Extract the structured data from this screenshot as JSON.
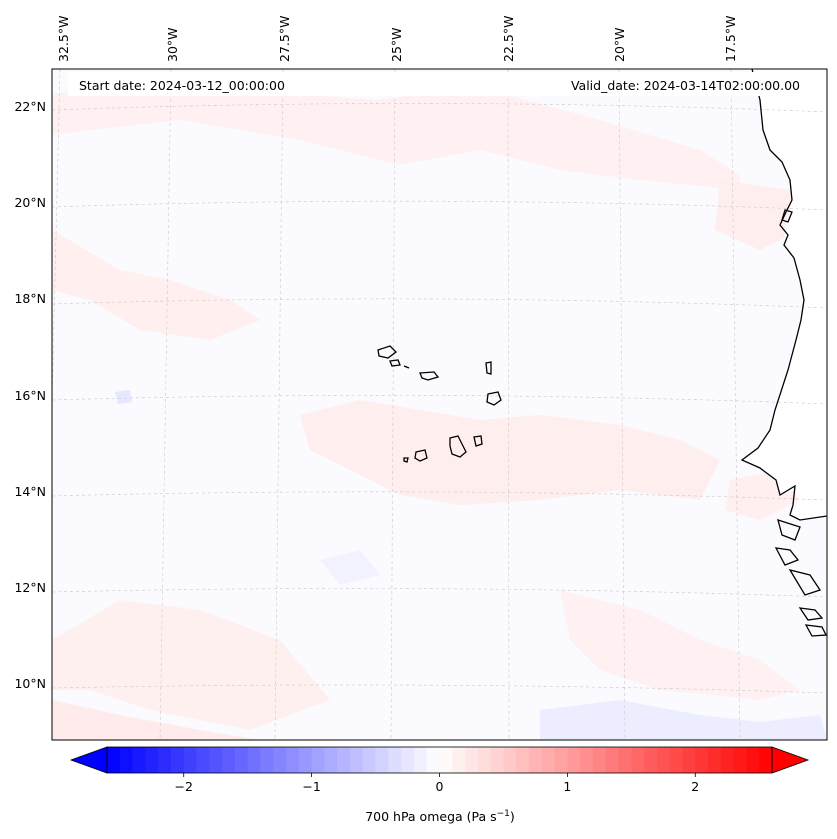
{
  "header": {
    "start_date": "Start date: 2024-03-12_00:00:00",
    "valid_date": "Valid_date: 2024-03-14T02:00:00.00"
  },
  "axes": {
    "lon_labels": [
      "32.5°W",
      "30°W",
      "27.5°W",
      "25°W",
      "22.5°W",
      "20°W",
      "17.5°W"
    ],
    "lat_labels": [
      "22°N",
      "20°N",
      "18°N",
      "16°N",
      "14°N",
      "12°N",
      "10°N"
    ]
  },
  "colorbar": {
    "label_main": "700 hPa omega (Pa s",
    "label_sup": "−1",
    "label_end": ")",
    "ticks": [
      "−2",
      "−1",
      "0",
      "1",
      "2"
    ],
    "tick_values": [
      -2,
      -1,
      0,
      1,
      2
    ],
    "range": [
      -2.6,
      2.6
    ],
    "extend": "both",
    "colormap": "bwr",
    "low_color": "#0000ff",
    "mid_color": "#ffffff",
    "high_color": "#ff0000"
  },
  "map": {
    "variable": "700 hPa omega",
    "land_color": "#ffffff",
    "coastline_color": "#000000",
    "gridline_color": "#c8c8c8",
    "positive_anomaly_color": "#ffecec",
    "negative_anomaly_color": "#eef0ff"
  }
}
